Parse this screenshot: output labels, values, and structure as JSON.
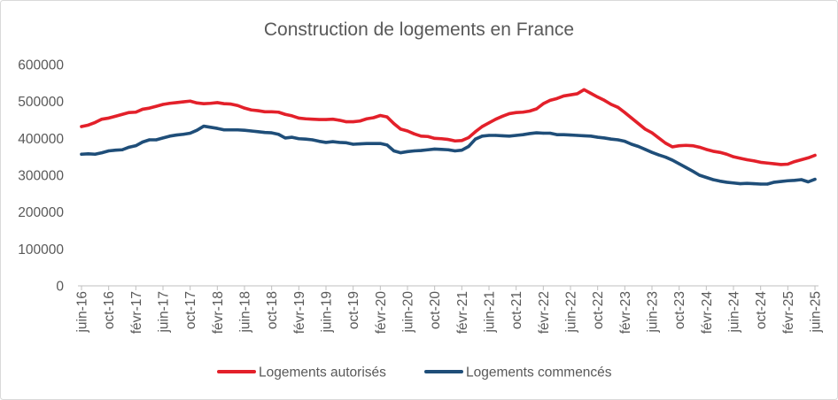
{
  "chart_data": {
    "type": "line",
    "title": "Construction de logements en France",
    "x_tick_labels": [
      "juin-16",
      "oct-16",
      "févr-17",
      "juin-17",
      "oct-17",
      "févr-18",
      "juin-18",
      "oct-18",
      "févr-19",
      "juin-19",
      "oct-19",
      "févr-20",
      "juin-20",
      "oct-20",
      "févr-21",
      "juin-21",
      "oct-21",
      "févr-22",
      "juin-22",
      "oct-22",
      "févr-23",
      "juin-23",
      "oct-23",
      "févr-24",
      "juin-24",
      "oct-24",
      "févr-25",
      "juin-25"
    ],
    "y_ticks": [
      0,
      100000,
      200000,
      300000,
      400000,
      500000,
      600000
    ],
    "ylim": [
      0,
      600000
    ],
    "grid": false,
    "legend_position": "bottom",
    "series": [
      {
        "name": "Logements autorisés",
        "color": "#E3202A",
        "values": [
          432000,
          436000,
          443000,
          452000,
          455000,
          460000,
          465000,
          470000,
          471000,
          479000,
          482000,
          487000,
          492000,
          495000,
          497000,
          499000,
          501000,
          496000,
          494000,
          495000,
          497000,
          494000,
          493000,
          489000,
          482000,
          477000,
          475000,
          472000,
          472000,
          471000,
          465000,
          461000,
          455000,
          453000,
          452000,
          451000,
          451000,
          452000,
          449000,
          445000,
          445000,
          447000,
          453000,
          456000,
          462000,
          458000,
          440000,
          425000,
          420000,
          412000,
          406000,
          405000,
          400000,
          399000,
          397000,
          393000,
          394000,
          402000,
          418000,
          432000,
          442000,
          452000,
          460000,
          467000,
          470000,
          471000,
          474000,
          480000,
          494000,
          503000,
          508000,
          515000,
          518000,
          521000,
          532000,
          522000,
          512000,
          503000,
          492000,
          484000,
          470000,
          455000,
          440000,
          425000,
          415000,
          401000,
          387000,
          377000,
          380000,
          381000,
          380000,
          376000,
          370000,
          365000,
          362000,
          357000,
          350000,
          346000,
          342000,
          339000,
          335000,
          333000,
          331000,
          329000,
          330000,
          337000,
          342000,
          347000,
          354000
        ]
      },
      {
        "name": "Logements commencés",
        "color": "#1F4E79",
        "values": [
          357000,
          358000,
          357000,
          361000,
          366000,
          368000,
          369000,
          376000,
          380000,
          390000,
          396000,
          396000,
          401000,
          406000,
          409000,
          411000,
          414000,
          422000,
          433000,
          430000,
          427000,
          423000,
          423000,
          423000,
          422000,
          420000,
          418000,
          416000,
          415000,
          411000,
          401000,
          403000,
          399000,
          398000,
          396000,
          392000,
          389000,
          391000,
          389000,
          388000,
          384000,
          385000,
          386000,
          386000,
          386000,
          382000,
          366000,
          361000,
          364000,
          366000,
          367000,
          369000,
          371000,
          370000,
          369000,
          366000,
          368000,
          378000,
          398000,
          406000,
          408000,
          408000,
          407000,
          406000,
          408000,
          410000,
          413000,
          415000,
          414000,
          414000,
          410000,
          410000,
          409000,
          408000,
          407000,
          406000,
          403000,
          401000,
          398000,
          396000,
          392000,
          384000,
          378000,
          370000,
          362000,
          355000,
          349000,
          341000,
          331000,
          321000,
          311000,
          300000,
          294000,
          288000,
          284000,
          281000,
          279000,
          277000,
          278000,
          277000,
          276000,
          276000,
          281000,
          283000,
          285000,
          286000,
          288000,
          282000,
          289000
        ]
      }
    ]
  }
}
